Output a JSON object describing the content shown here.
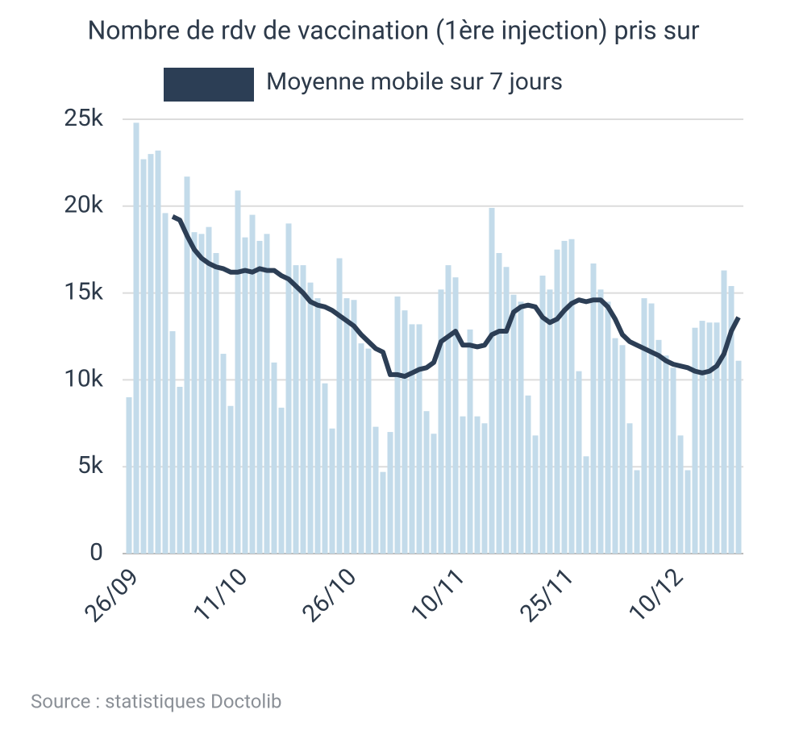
{
  "chart_data": {
    "type": "combo",
    "title": "Nombre de rdv de vaccination (1ère injection) pris sur",
    "source": "Source : statistiques Doctolib",
    "grid": true,
    "legend": "top",
    "categories": [
      "26/09",
      null,
      null,
      null,
      null,
      null,
      null,
      null,
      null,
      null,
      null,
      null,
      null,
      null,
      null,
      "11/10",
      null,
      null,
      null,
      null,
      null,
      null,
      null,
      null,
      null,
      null,
      null,
      null,
      null,
      null,
      "26/10",
      null,
      null,
      null,
      null,
      null,
      null,
      null,
      null,
      null,
      null,
      null,
      null,
      null,
      null,
      "10/11",
      null,
      null,
      null,
      null,
      null,
      null,
      null,
      null,
      null,
      null,
      null,
      null,
      null,
      null,
      "25/11",
      null,
      null,
      null,
      null,
      null,
      null,
      null,
      null,
      null,
      null,
      null,
      null,
      null,
      null,
      "10/12",
      null,
      null,
      null,
      null,
      null,
      null,
      null,
      null,
      null
    ],
    "ylim": [
      0,
      25000
    ],
    "yticks": [
      0,
      {
        "value": 5000,
        "label": "5k"
      },
      {
        "value": 10000,
        "label": "10k"
      },
      {
        "value": 15000,
        "label": "15k"
      },
      {
        "value": 20000,
        "label": "20k"
      },
      {
        "value": 25000,
        "label": "25k"
      }
    ],
    "series": [
      {
        "type": "bar",
        "color": "#c3dbea",
        "values": [
          9000,
          24800,
          22700,
          23000,
          23200,
          19600,
          12800,
          9600,
          21700,
          18500,
          18400,
          18800,
          17300,
          11500,
          8500,
          20900,
          18200,
          19500,
          18000,
          18400,
          11000,
          8400,
          19000,
          16600,
          16600,
          15600,
          14700,
          9800,
          7200,
          17000,
          14700,
          14600,
          12100,
          11800,
          7300,
          4700,
          7000,
          14800,
          14000,
          13200,
          13200,
          8200,
          6900,
          15200,
          16600,
          15900,
          7900,
          12900,
          7900,
          7500,
          19900,
          17300,
          16500,
          14900,
          14500,
          9100,
          6800,
          16000,
          15200,
          17500,
          18000,
          18100,
          10500,
          5600,
          16700,
          15200,
          14500,
          12400,
          12000,
          7500,
          4800,
          14700,
          14400,
          12300,
          11400,
          10700,
          6800,
          4800,
          13000,
          13400,
          13300,
          13300,
          16300,
          15400,
          11100
        ]
      },
      {
        "type": "line",
        "name": "Moyenne mobile sur 7 jours",
        "color": "#2c3e55",
        "values": [
          null,
          null,
          null,
          null,
          null,
          null,
          19400,
          19200,
          18300,
          17500,
          17000,
          16700,
          16500,
          16400,
          16200,
          16200,
          16300,
          16200,
          16400,
          16300,
          16300,
          16000,
          15800,
          15400,
          15000,
          14500,
          14300,
          14200,
          14000,
          13700,
          13400,
          13100,
          12600,
          12200,
          11800,
          11600,
          10300,
          10300,
          10200,
          10400,
          10600,
          10700,
          11000,
          12200,
          12500,
          12800,
          12000,
          12000,
          11900,
          12000,
          12600,
          12800,
          12800,
          13900,
          14200,
          14300,
          14200,
          13600,
          13300,
          13500,
          14000,
          14400,
          14600,
          14500,
          14600,
          14600,
          14200,
          13500,
          12600,
          12200,
          12000,
          11800,
          11600,
          11400,
          11100,
          10900,
          10800,
          10700,
          10500,
          10400,
          10500,
          10800,
          11500,
          12800,
          13600
        ]
      }
    ]
  }
}
